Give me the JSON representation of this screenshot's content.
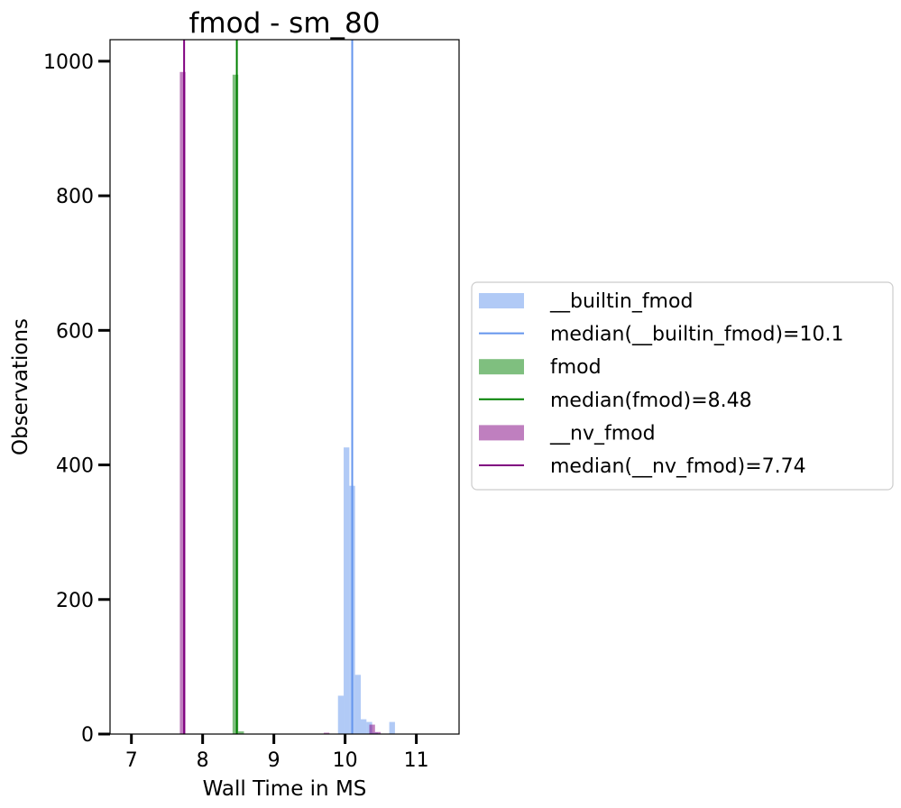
{
  "chart_data": {
    "type": "histogram",
    "title": "fmod - sm_80",
    "xlabel": "Wall Time in MS",
    "ylabel": "Observations",
    "xlim": [
      6.7,
      11.6
    ],
    "ylim": [
      0,
      1032
    ],
    "xticks": [
      7,
      8,
      9,
      10,
      11
    ],
    "yticks": [
      0,
      200,
      400,
      600,
      800,
      1000
    ],
    "grid": false,
    "legend_position": "right-outside",
    "series": [
      {
        "name": "__builtin_fmod",
        "color": "#6495ED",
        "bin_width": 0.08,
        "bins": [
          {
            "x": 9.94,
            "count": 57
          },
          {
            "x": 10.02,
            "count": 426
          },
          {
            "x": 10.1,
            "count": 369
          },
          {
            "x": 10.18,
            "count": 88
          },
          {
            "x": 10.26,
            "count": 22
          },
          {
            "x": 10.34,
            "count": 18
          },
          {
            "x": 10.42,
            "count": 2
          },
          {
            "x": 10.5,
            "count": 0
          },
          {
            "x": 10.58,
            "count": 0
          },
          {
            "x": 10.66,
            "count": 18
          }
        ],
        "median": 10.1,
        "median_label": "median(__builtin_fmod)=10.1"
      },
      {
        "name": "fmod",
        "color": "#008000",
        "bin_width": 0.08,
        "bins": [
          {
            "x": 8.46,
            "count": 980
          },
          {
            "x": 8.54,
            "count": 4
          }
        ],
        "median": 8.48,
        "median_label": "median(fmod)=8.48"
      },
      {
        "name": "__nv_fmod",
        "color": "#800080",
        "bin_width": 0.08,
        "bins": [
          {
            "x": 7.72,
            "count": 984
          },
          {
            "x": 9.74,
            "count": 2
          },
          {
            "x": 10.38,
            "count": 14
          },
          {
            "x": 10.46,
            "count": 3
          }
        ],
        "median": 7.74,
        "median_label": "median(__nv_fmod)=7.74"
      }
    ]
  }
}
